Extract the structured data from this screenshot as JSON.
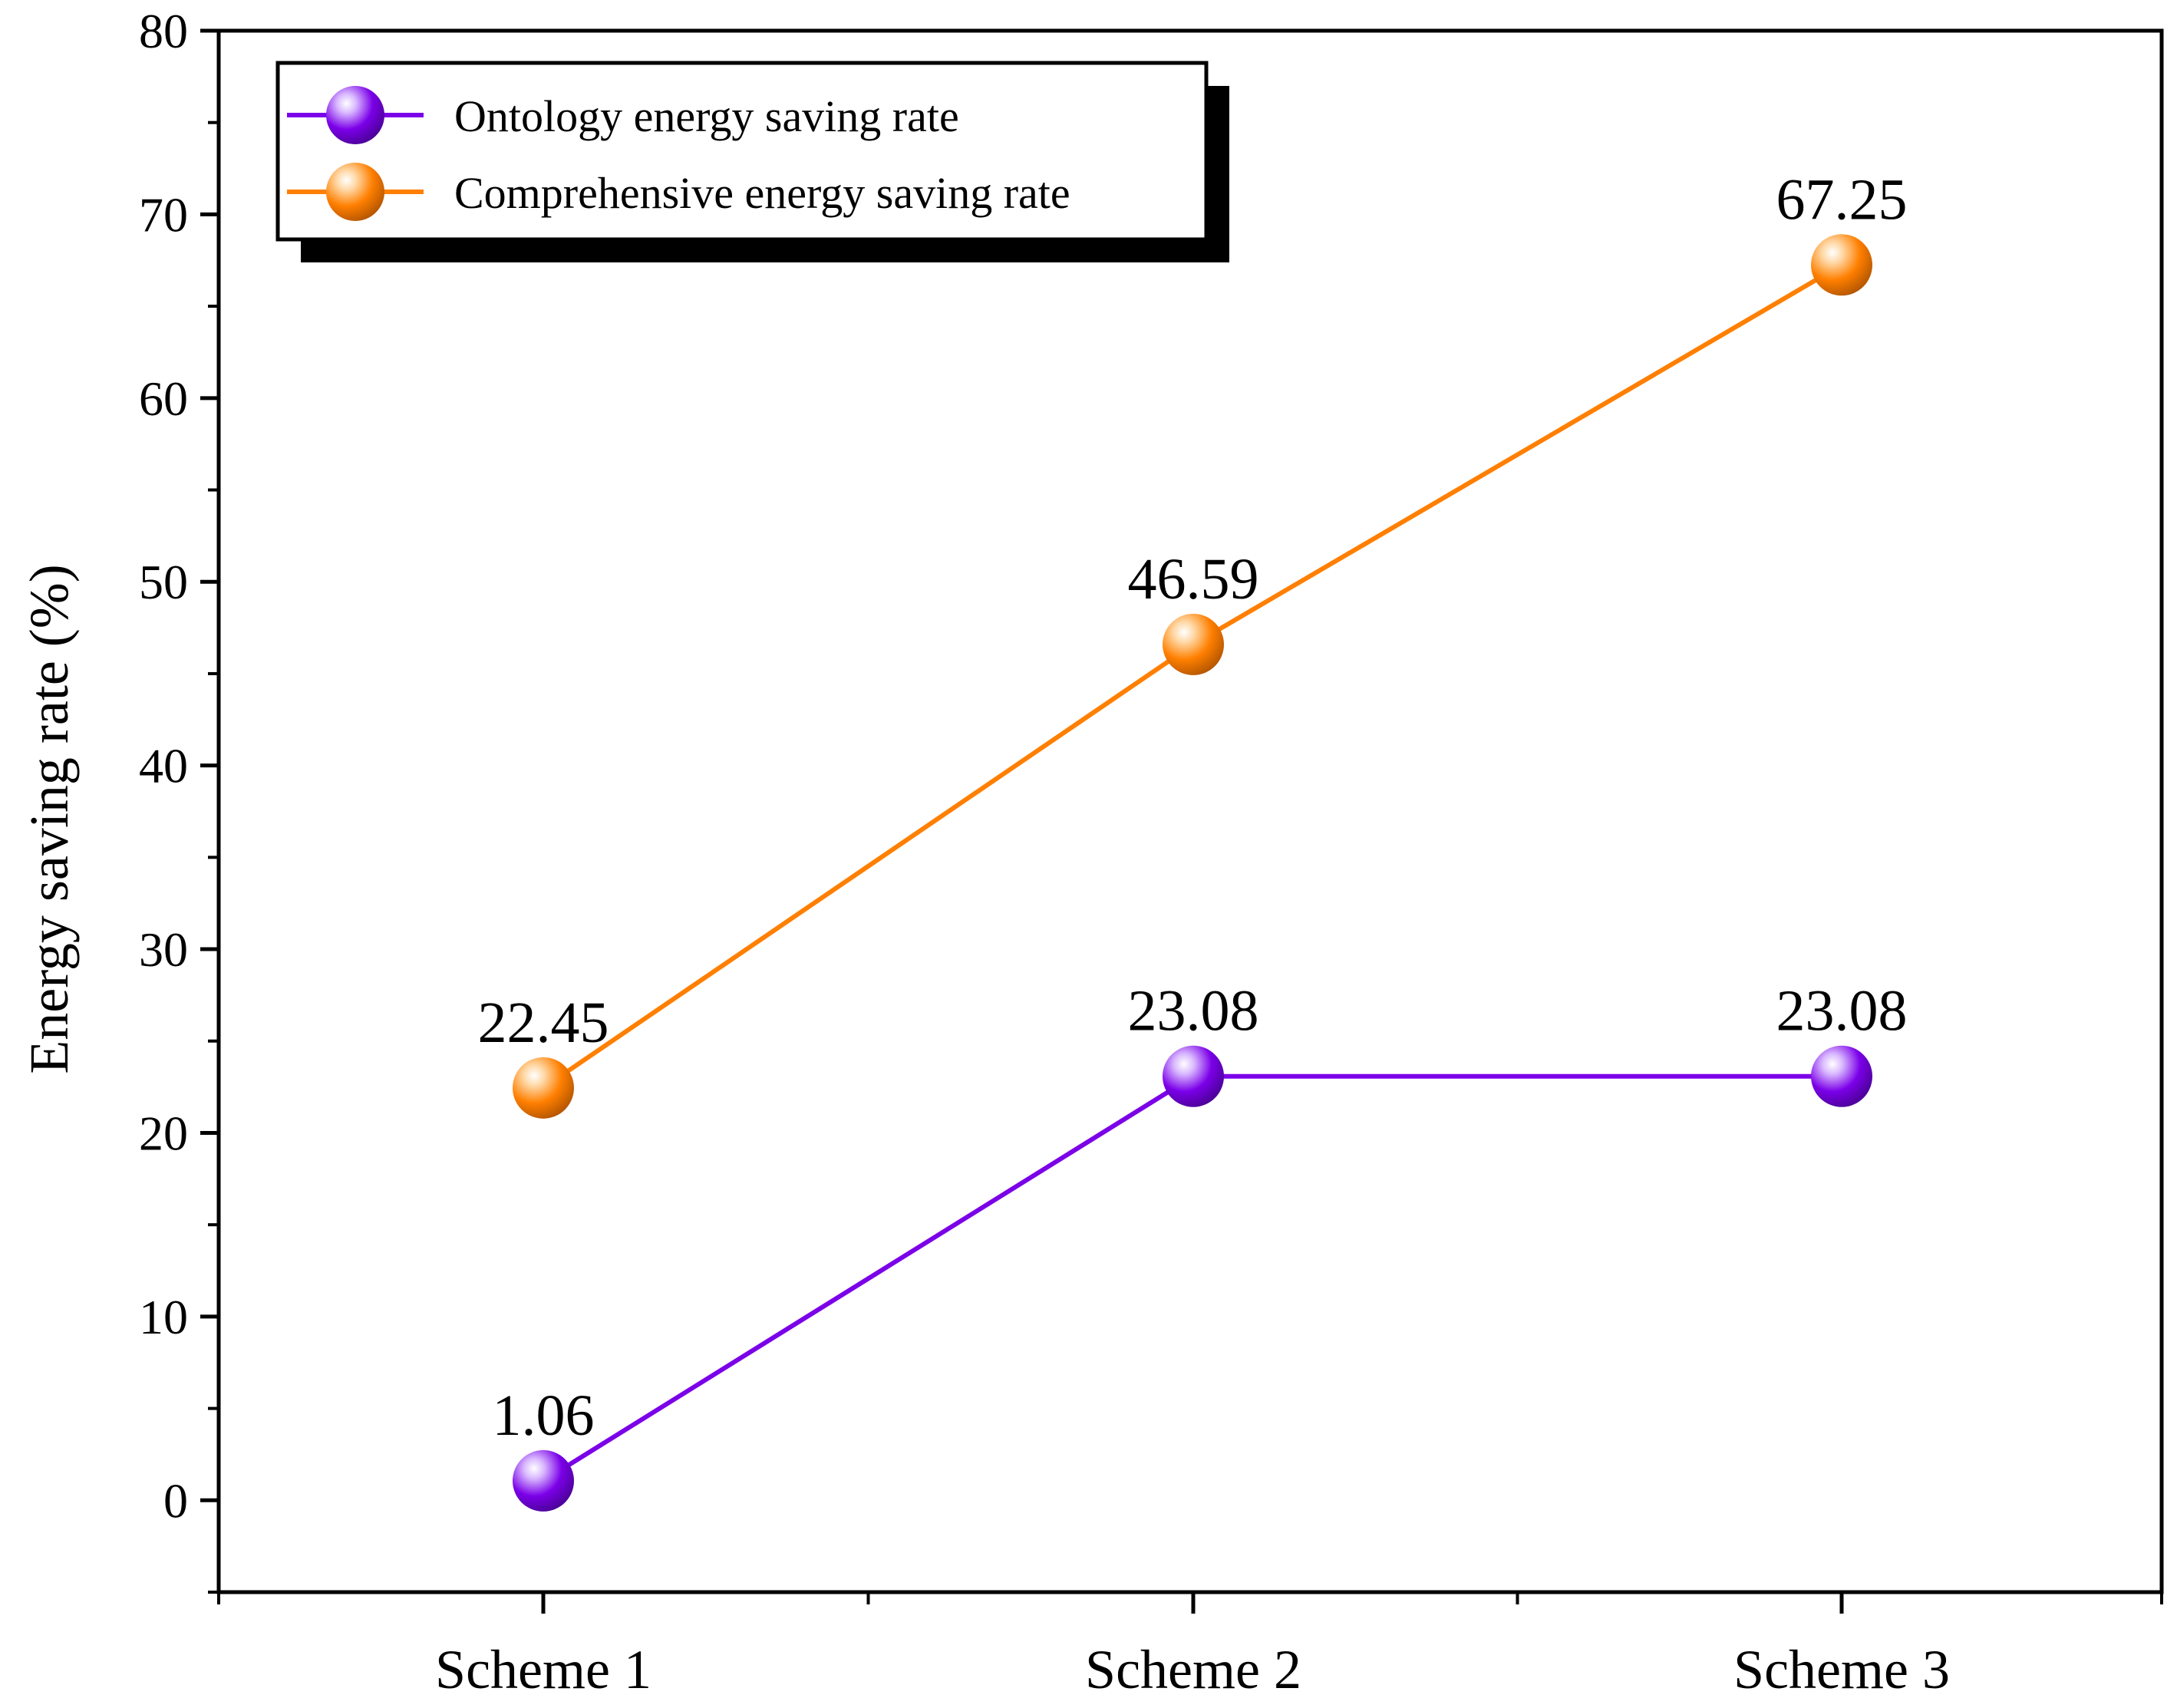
{
  "chart_data": {
    "type": "line",
    "title": "",
    "xlabel": "",
    "ylabel": "Energy saving rate (%)",
    "categories": [
      "Scheme 1",
      "Scheme 2",
      "Scheme 3"
    ],
    "ylim": [
      -5,
      80
    ],
    "yticks": [
      0,
      10,
      20,
      30,
      40,
      50,
      60,
      70,
      80
    ],
    "grid": false,
    "legend_position": "top-left",
    "series": [
      {
        "name": "Ontology energy saving rate",
        "color": "#7B00E8",
        "values": [
          1.06,
          23.08,
          23.08
        ],
        "labels": [
          "1.06",
          "23.08",
          "23.08"
        ]
      },
      {
        "name": "Comprehensive energy saving rate",
        "color": "#FF7F00",
        "values": [
          22.45,
          46.59,
          67.25
        ],
        "labels": [
          "22.45",
          "46.59",
          "67.25"
        ]
      }
    ]
  }
}
